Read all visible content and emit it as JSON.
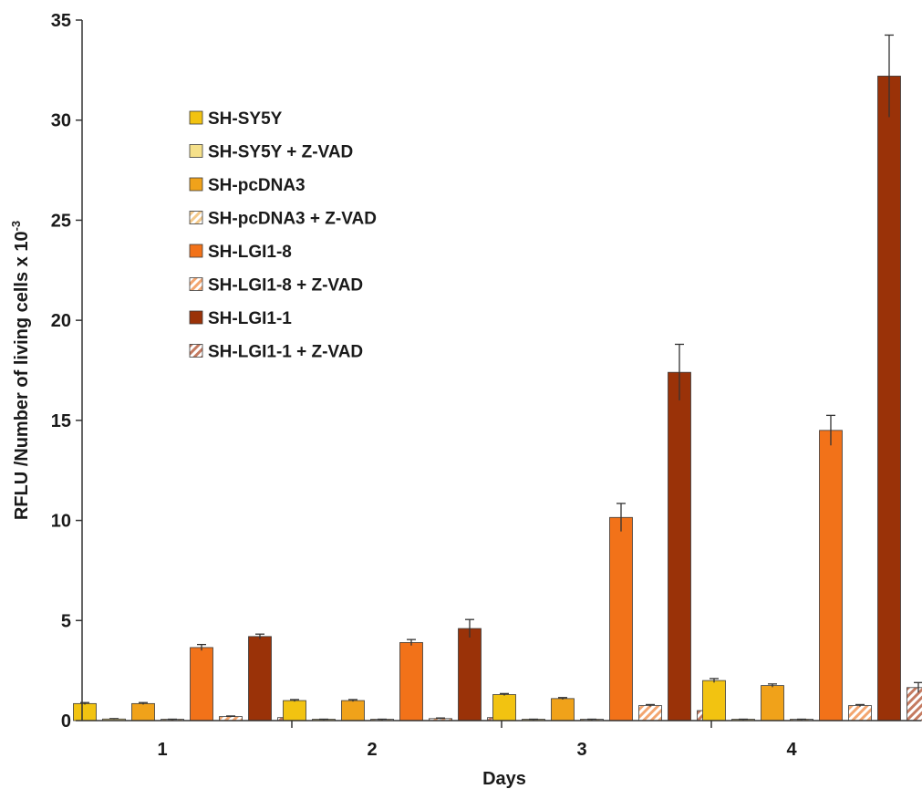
{
  "chart_data": {
    "type": "bar",
    "title": "",
    "xlabel": "Days",
    "ylabel": "RFLU /Number of living cells x 10",
    "ylabel_superscript": "-3",
    "ylim": [
      0,
      35
    ],
    "yticks": [
      "0",
      "5",
      "10",
      "15",
      "20",
      "25",
      "30",
      "35"
    ],
    "categories": [
      "1",
      "2",
      "3",
      "4"
    ],
    "grid": false,
    "legend_position": "top-left inside",
    "series": [
      {
        "name": "SH-SY5Y",
        "color": "#f2c311",
        "pattern": "solid",
        "values": [
          0.85,
          1.0,
          1.3,
          2.0
        ],
        "errors": [
          0.05,
          0.05,
          0.05,
          0.1
        ]
      },
      {
        "name": "SH-SY5Y + Z-VAD",
        "color": "#f5e08a",
        "pattern": "solid",
        "values": [
          0.08,
          0.05,
          0.05,
          0.05
        ],
        "errors": [
          0.02,
          0.02,
          0.02,
          0.02
        ]
      },
      {
        "name": "SH-pcDNA3",
        "color": "#f0a21a",
        "pattern": "solid",
        "values": [
          0.85,
          1.0,
          1.1,
          1.75
        ],
        "errors": [
          0.05,
          0.05,
          0.05,
          0.08
        ]
      },
      {
        "name": "SH-pcDNA3 + Z-VAD",
        "color": "#f4c98a",
        "pattern": "hatched",
        "values": [
          0.05,
          0.05,
          0.05,
          0.05
        ],
        "errors": [
          0.02,
          0.02,
          0.02,
          0.02
        ]
      },
      {
        "name": "SH-LGI1-8",
        "color": "#f27219",
        "pattern": "solid",
        "values": [
          3.65,
          3.9,
          10.15,
          14.5
        ],
        "errors": [
          0.15,
          0.15,
          0.7,
          0.75
        ]
      },
      {
        "name": "SH-LGI1-8 + Z-VAD",
        "color": "#f3a56f",
        "pattern": "hatched",
        "values": [
          0.2,
          0.1,
          0.75,
          0.75
        ],
        "errors": [
          0.03,
          0.03,
          0.05,
          0.05
        ]
      },
      {
        "name": "SH-LGI1-1",
        "color": "#9a3208",
        "pattern": "solid",
        "values": [
          4.2,
          4.6,
          17.4,
          32.2
        ],
        "errors": [
          0.12,
          0.45,
          1.4,
          2.05
        ]
      },
      {
        "name": "SH-LGI1-1 + Z-VAD",
        "color": "#c47a60",
        "pattern": "hatched",
        "values": [
          0.15,
          0.15,
          0.5,
          1.65
        ],
        "errors": [
          0.03,
          0.03,
          0.2,
          0.25
        ]
      }
    ]
  }
}
